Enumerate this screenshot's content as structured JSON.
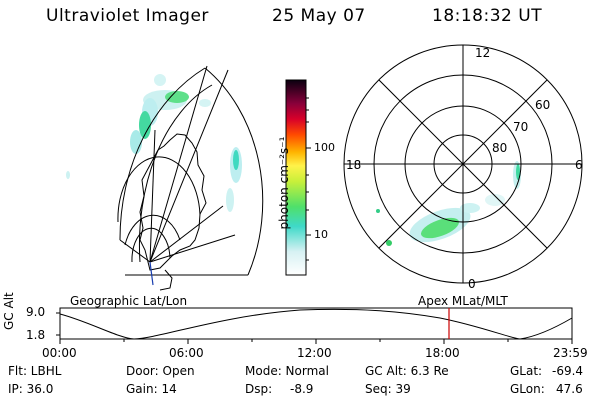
{
  "header": {
    "instrument": "Ultraviolet Imager",
    "date": "25 May 07",
    "time": "18:18:32 UT"
  },
  "colorbar": {
    "unit_label": "photon cm⁻²s⁻¹",
    "ticks": [
      "100",
      "10"
    ]
  },
  "polar_plot": {
    "mlt_labels": {
      "top": "12",
      "left": "18",
      "right": "6",
      "bottom": "0"
    },
    "lat_labels": [
      "60",
      "70",
      "80"
    ]
  },
  "panel_labels": {
    "left": "Geographic Lat/Lon",
    "right": "Apex MLat/MLT"
  },
  "altitude_track": {
    "axis_label": "GC Alt",
    "y_ticks": [
      "9.0",
      "1.8"
    ],
    "x_ticks": [
      "00:00",
      "06:00",
      "12:00",
      "18:00",
      "23:59"
    ],
    "marker_color": "#cc0000"
  },
  "info": {
    "flt": "Flt: LBHL",
    "ip": "IP: 36.0",
    "door": "Door: Open",
    "gain": "Gain: 14",
    "mode": "Mode: Normal",
    "dsp_label": "Dsp:",
    "dsp_value": "-8.9",
    "gcalt": "GC Alt: 6.3 Re",
    "seq": "Seq: 39",
    "glat_label": "GLat:",
    "glat_value": "-69.4",
    "glon_label": "GLon:",
    "glon_value": "47.6"
  }
}
